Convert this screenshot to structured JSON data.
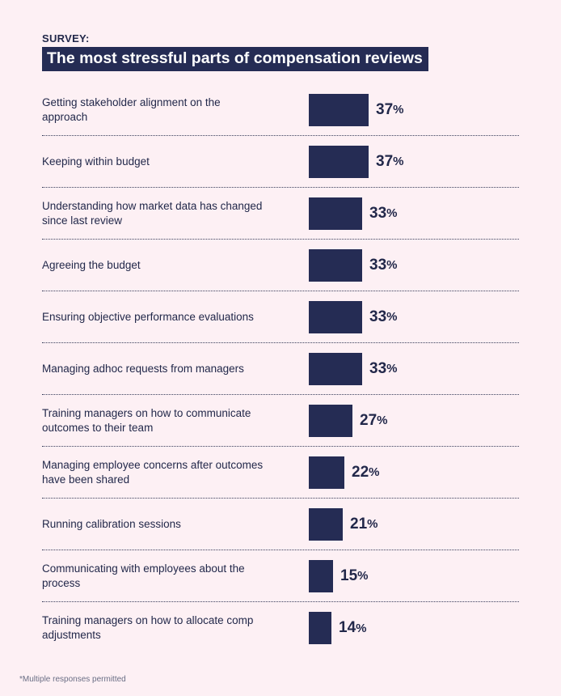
{
  "header": {
    "kicker": "SURVEY:",
    "title": "The most stressful parts of compensation reviews"
  },
  "chart_data": {
    "type": "bar",
    "orientation": "horizontal",
    "title": "The most stressful parts of compensation reviews",
    "unit": "%",
    "xlim": [
      0,
      100
    ],
    "categories": [
      "Getting stakeholder alignment on the approach",
      "Keeping within budget",
      "Understanding how market data has changed since last review",
      "Agreeing the budget",
      "Ensuring objective performance evaluations",
      "Managing adhoc requests from managers",
      "Training managers on how to communicate outcomes to their team",
      "Managing employee concerns after outcomes have been shared",
      "Running calibration sessions",
      "Communicating with employees about the process",
      "Training managers on how to allocate comp adjustments"
    ],
    "values": [
      37,
      37,
      33,
      33,
      33,
      33,
      27,
      22,
      21,
      15,
      14
    ]
  },
  "footnote": "*Multiple responses permitted",
  "colors": {
    "background": "#fdf0f4",
    "bar": "#252c54",
    "text": "#22284a"
  }
}
